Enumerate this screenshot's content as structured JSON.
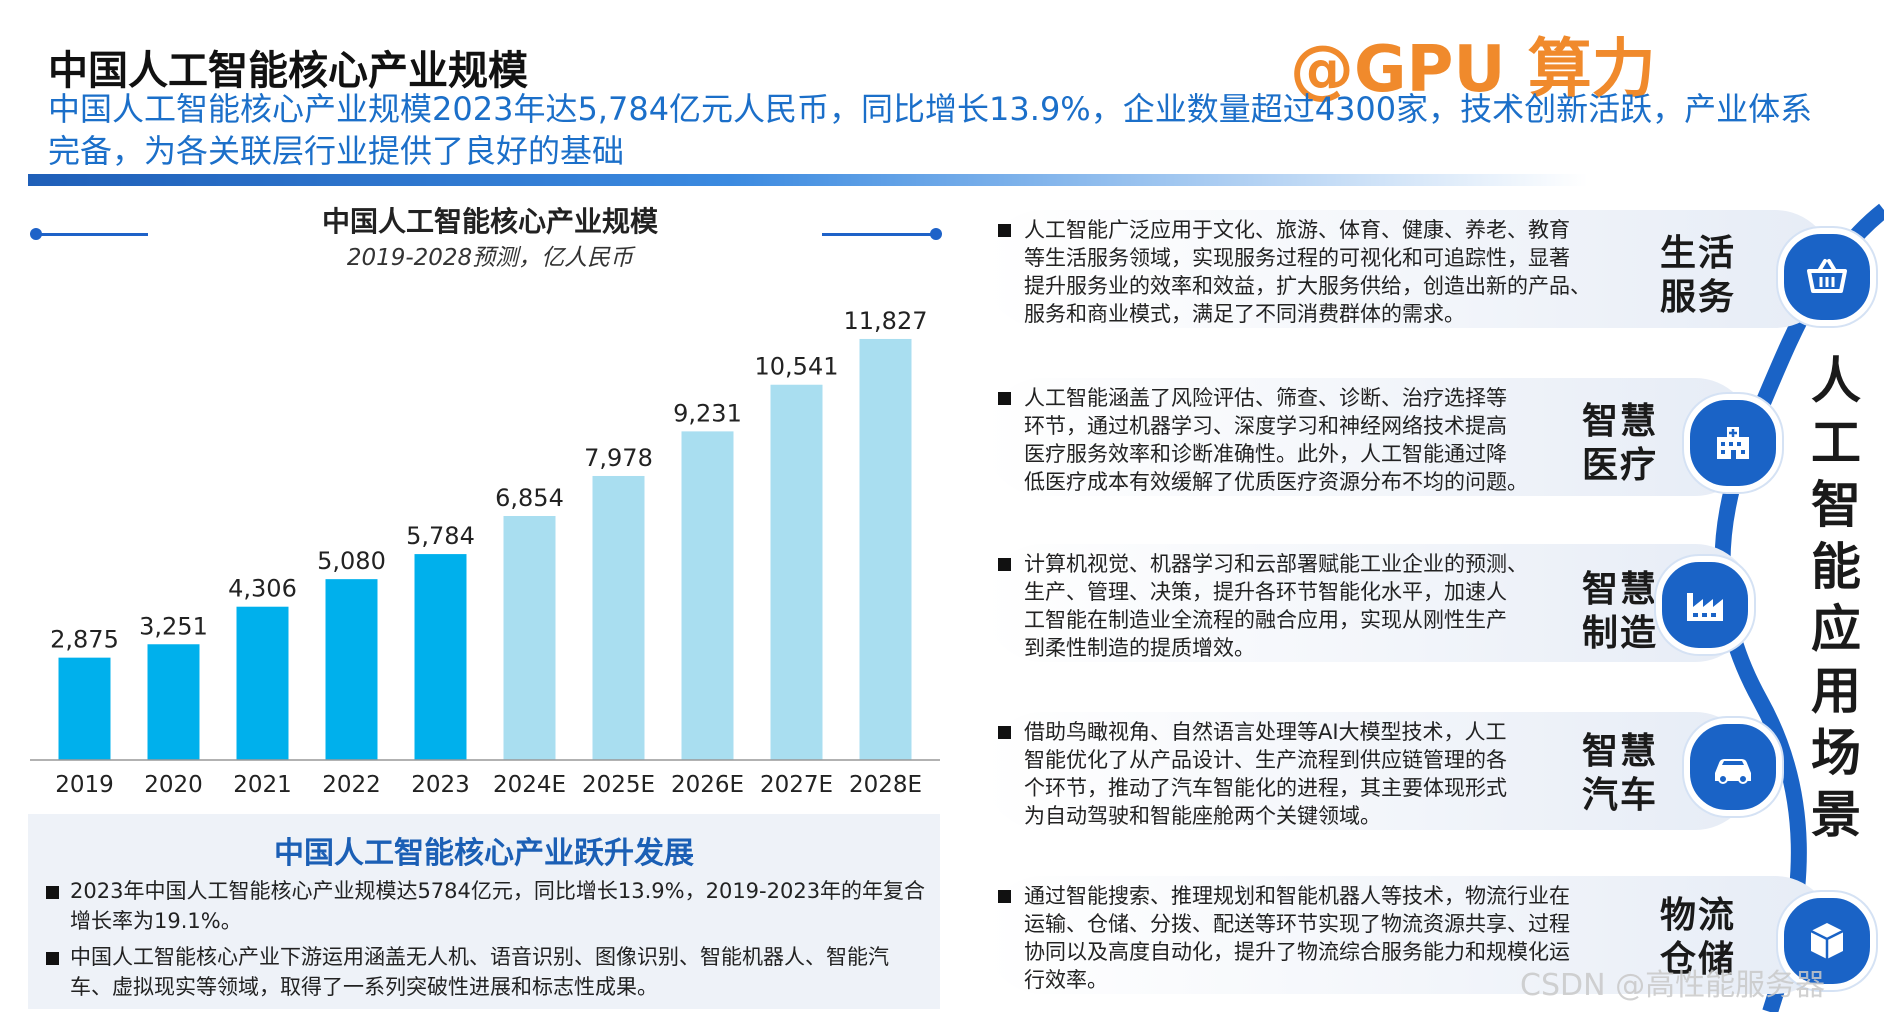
{
  "header": {
    "title": "中国人工智能核心产业规模",
    "watermark": "@GPU 算力",
    "subtitle": "中国人工智能核心产业规模2023年达5,784亿元人民币，同比增长13.9%，企业数量超过4300家，技术创新活跃，产业体系完备，为各关联层行业提供了良好的基础"
  },
  "chart_data": {
    "type": "bar",
    "title": "中国人工智能核心产业规模",
    "subtitle": "2019-2028预测，亿人民币",
    "categories": [
      "2019",
      "2020",
      "2021",
      "2022",
      "2023",
      "2024E",
      "2025E",
      "2026E",
      "2027E",
      "2028E"
    ],
    "values": [
      2875,
      3251,
      4306,
      5080,
      5784,
      6854,
      7978,
      9231,
      10541,
      11827
    ],
    "value_labels": [
      "2,875",
      "3,251",
      "4,306",
      "5,080",
      "5,784",
      "6,854",
      "7,978",
      "9,231",
      "10,541",
      "11,827"
    ],
    "ylim": [
      0,
      12500
    ],
    "colors": {
      "actual": "#00b0ec",
      "forecast": "#a9def0",
      "axis": "#999999"
    },
    "xlabel": "",
    "ylabel": ""
  },
  "development": {
    "title": "中国人工智能核心产业跃升发展",
    "items": [
      "2023年中国人工智能核心产业规模达5784亿元，同比增长13.9%，2019-2023年的年复合增长率为19.1%。",
      "中国人工智能核心产业下游运用涵盖无人机、语音识别、图像识别、智能机器人、智能汽车、虚拟现实等领域，取得了一系列突破性进展和标志性成果。"
    ]
  },
  "scenarios": {
    "vertical_label": "人工智能应用场景",
    "items": [
      {
        "label_line1": "生活",
        "label_line2": "服务",
        "icon": "basket-icon",
        "text": [
          "人工智能广泛应用于文化、旅游、体育、健康、养老、教育",
          "等生活服务领域，实现服务过程的可视化和可追踪性，显著",
          "提升服务业的效率和效益，扩大服务供给，创造出新的产品、",
          "服务和商业模式，满足了不同消费群体的需求。"
        ]
      },
      {
        "label_line1": "智慧",
        "label_line2": "医疗",
        "icon": "hospital-icon",
        "text": [
          "人工智能涵盖了风险评估、筛查、诊断、治疗选择等",
          "环节，通过机器学习、深度学习和神经网络技术提高",
          "医疗服务效率和诊断准确性。此外，人工智能通过降",
          "低医疗成本有效缓解了优质医疗资源分布不均的问题。"
        ]
      },
      {
        "label_line1": "智慧",
        "label_line2": "制造",
        "icon": "factory-icon",
        "text": [
          "计算机视觉、机器学习和云部署赋能工业企业的预测、",
          "生产、管理、决策，提升各环节智能化水平，加速人",
          "工智能在制造业全流程的融合应用，实现从刚性生产",
          "到柔性制造的提质增效。"
        ]
      },
      {
        "label_line1": "智慧",
        "label_line2": "汽车",
        "icon": "car-icon",
        "text": [
          "借助鸟瞰视角、自然语言处理等AI大模型技术，人工",
          "智能优化了从产品设计、生产流程到供应链管理的各",
          "个环节，推动了汽车智能化的进程，其主要体现形式",
          "为自动驾驶和智能座舱两个关键领域。"
        ]
      },
      {
        "label_line1": "物流",
        "label_line2": "仓储",
        "icon": "box-icon",
        "text": [
          "通过智能搜索、推理规划和智能机器人等技术，物流行业在",
          "运输、仓储、分拨、配送等环节实现了物流资源共享、过程",
          "协同以及高度自动化，提升了物流综合服务能力和规模化运",
          "行效率。"
        ]
      }
    ]
  },
  "footer": {
    "credit": "CSDN @高性能服务器"
  }
}
